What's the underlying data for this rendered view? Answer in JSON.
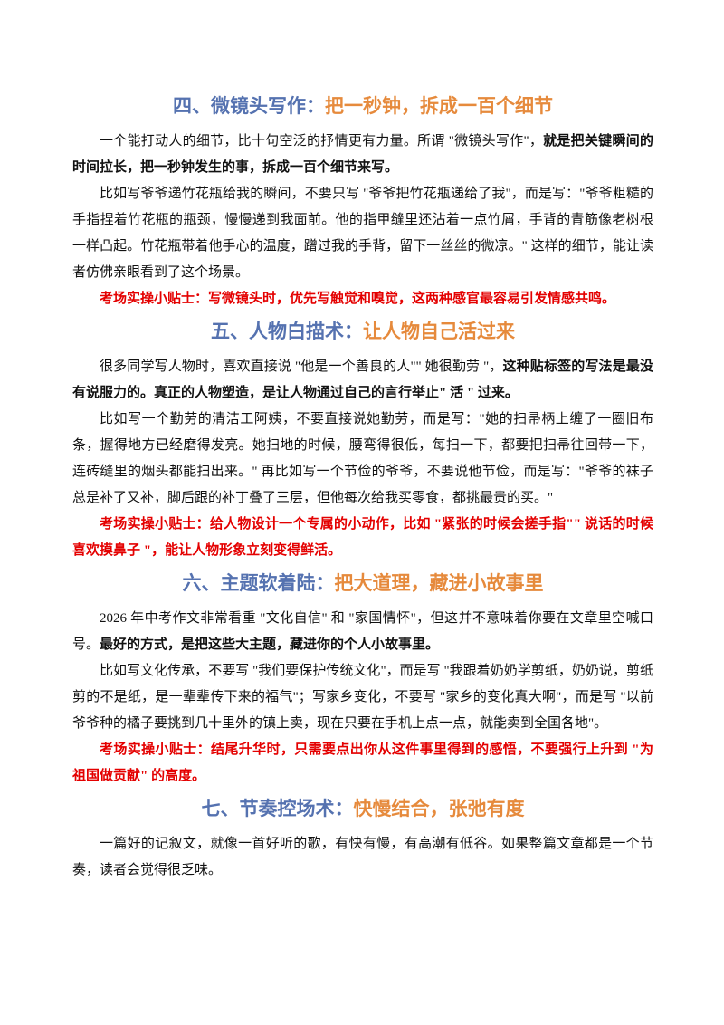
{
  "sections": [
    {
      "heading": {
        "number": "四、微镜头写作：",
        "title": "把一秒钟，拆成一百个细节"
      },
      "paragraphs": [
        [
          {
            "text": "一个能打动人的细节，比十句空泛的抒情更有力量。所谓 \"微镜头写作\"，",
            "bold": false
          },
          {
            "text": "就是把关键瞬间的时间拉长，把一秒钟发生的事，拆成一百个细节来写。",
            "bold": true
          }
        ],
        [
          {
            "text": "比如写爷爷递竹花瓶给我的瞬间，不要只写 \"爷爷把竹花瓶递给了我\"，而是写：\"爷爷粗糙的手指捏着竹花瓶的瓶颈，慢慢递到我面前。他的指甲缝里还沾着一点竹屑，手背的青筋像老树根一样凸起。竹花瓶带着他手心的温度，蹭过我的手背，留下一丝丝的微凉。\" 这样的细节，能让读者仿佛亲眼看到了这个场景。",
            "bold": false
          }
        ]
      ],
      "tip": "考场实操小贴士：写微镜头时，优先写触觉和嗅觉，这两种感官最容易引发情感共鸣。"
    },
    {
      "heading": {
        "number": "五、人物白描术：",
        "title": "让人物自己活过来"
      },
      "paragraphs": [
        [
          {
            "text": "很多同学写人物时，喜欢直接说 \"他是一个善良的人\"\" 她很勤劳 \"，",
            "bold": false
          },
          {
            "text": "这种贴标签的写法是最没有说服力的。真正的人物塑造，是让人物通过自己的言行举止\" 活 \" 过来。",
            "bold": true
          }
        ],
        [
          {
            "text": "比如写一个勤劳的清洁工阿姨，不要直接说她勤劳，而是写：\"她的扫帚柄上缠了一圈旧布条，握得地方已经磨得发亮。她扫地的时候，腰弯得很低，每扫一下，都要把扫帚往回带一下，连砖缝里的烟头都能扫出来。\" 再比如写一个节俭的爷爷，不要说他节俭，而是写：\"爷爷的袜子总是补了又补，脚后跟的补丁叠了三层，但他每次给我买零食，都挑最贵的买。\"",
            "bold": false
          }
        ]
      ],
      "tip": "考场实操小贴士：给人物设计一个专属的小动作，比如 \"紧张的时候会搓手指\"\" 说话的时候喜欢摸鼻子 \"，能让人物形象立刻变得鲜活。"
    },
    {
      "heading": {
        "number": "六、主题软着陆：",
        "title": "把大道理，藏进小故事里"
      },
      "paragraphs": [
        [
          {
            "text": "2026 年中考作文非常看重 \"文化自信\" 和 \"家国情怀\"，但这并不意味着你要在文章里空喊口号。",
            "bold": false
          },
          {
            "text": "最好的方式，是把这些大主题，藏进你的个人小故事里。",
            "bold": true
          }
        ],
        [
          {
            "text": "比如写文化传承，不要写 \"我们要保护传统文化\"，而是写 \"我跟着奶奶学剪纸，奶奶说，剪纸剪的不是纸，是一辈辈传下来的福气\"；写家乡变化，不要写 \"家乡的变化真大啊\"，而是写 \"以前爷爷种的橘子要挑到几十里外的镇上卖，现在只要在手机上点一点，就能卖到全国各地\"。",
            "bold": false
          }
        ]
      ],
      "tip": "考场实操小贴士：结尾升华时，只需要点出你从这件事里得到的感悟，不要强行上升到 \"为祖国做贡献\" 的高度。"
    },
    {
      "heading": {
        "number": "七、节奏控场术：",
        "title": "快慢结合，张弛有度"
      },
      "paragraphs": [
        [
          {
            "text": "一篇好的记叙文，就像一首好听的歌，有快有慢，有高潮有低谷。如果整篇文章都是一个节奏，读者会觉得很乏味。",
            "bold": false
          }
        ]
      ]
    }
  ]
}
